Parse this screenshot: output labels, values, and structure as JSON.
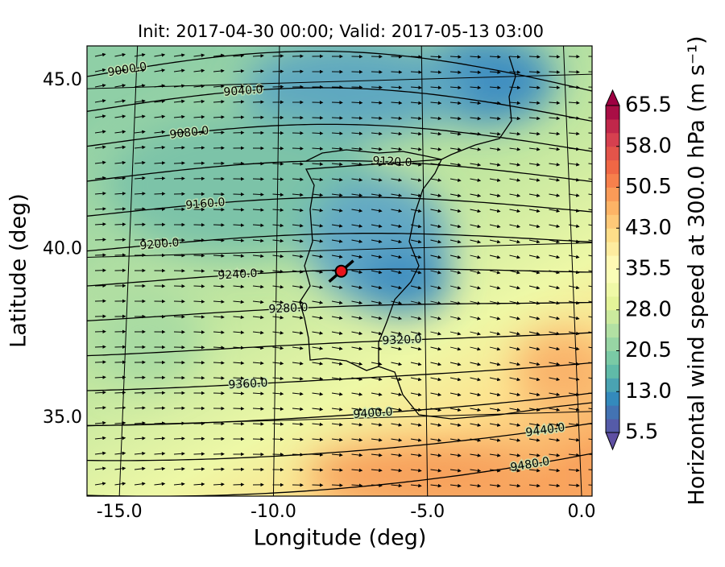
{
  "chart_data": {
    "type": "map",
    "title": "Init: 2017-04-30 00:00; Valid: 2017-05-13 03:00",
    "x_label": "Longitude (deg)",
    "y_label": "Latitude (deg)",
    "xlim": [
      -16.05,
      0.34
    ],
    "ylim": [
      32.68,
      46.03
    ],
    "xticks": [
      {
        "value": -15,
        "label": "-15.0"
      },
      {
        "value": -10,
        "label": "-10.0"
      },
      {
        "value": -5,
        "label": "-5.0"
      },
      {
        "value": 0,
        "label": "0.0"
      }
    ],
    "yticks": [
      {
        "value": 35,
        "label": "35.0"
      },
      {
        "value": 40,
        "label": "40.0"
      },
      {
        "value": 45,
        "label": "45.0"
      }
    ],
    "grid": true,
    "contour_levels": [
      {
        "value": 9000,
        "label": "9000.0"
      },
      {
        "value": 9040,
        "label": "9040.0"
      },
      {
        "value": 9080,
        "label": "9080.0"
      },
      {
        "value": 9120,
        "label": "9120.0"
      },
      {
        "value": 9160,
        "label": "9160.0"
      },
      {
        "value": 9200,
        "label": "9200.0"
      },
      {
        "value": 9240,
        "label": "9240.0"
      },
      {
        "value": 9280,
        "label": "9280.0"
      },
      {
        "value": 9320,
        "label": "9320.0"
      },
      {
        "value": 9360,
        "label": "9360.0"
      },
      {
        "value": 9400,
        "label": "9400.0"
      },
      {
        "value": 9440,
        "label": "9440.0"
      },
      {
        "value": 9480,
        "label": "9480.0"
      }
    ],
    "marker": {
      "x": -7.8,
      "y": 39.35,
      "color": "#e8141b"
    },
    "colorbar": {
      "label": "Horizontal wind speed at 300.0 hPa (m s⁻¹)",
      "clim": [
        5.5,
        65.5
      ],
      "ticks": [
        {
          "value": 65.5,
          "label": "65.5"
        },
        {
          "value": 58,
          "label": "58.0"
        },
        {
          "value": 50.5,
          "label": "50.5"
        },
        {
          "value": 43,
          "label": "43.0"
        },
        {
          "value": 35.5,
          "label": "35.5"
        },
        {
          "value": 28,
          "label": "28.0"
        },
        {
          "value": 20.5,
          "label": "20.5"
        },
        {
          "value": 13,
          "label": "13.0"
        },
        {
          "value": 5.5,
          "label": "5.5"
        }
      ],
      "colormap": [
        "#5e4fa2",
        "#3288bd",
        "#66c2a5",
        "#abdda4",
        "#e6f598",
        "#ffffbf",
        "#fee08b",
        "#fdae61",
        "#f46d43",
        "#d53e4f",
        "#9e0142"
      ]
    }
  }
}
